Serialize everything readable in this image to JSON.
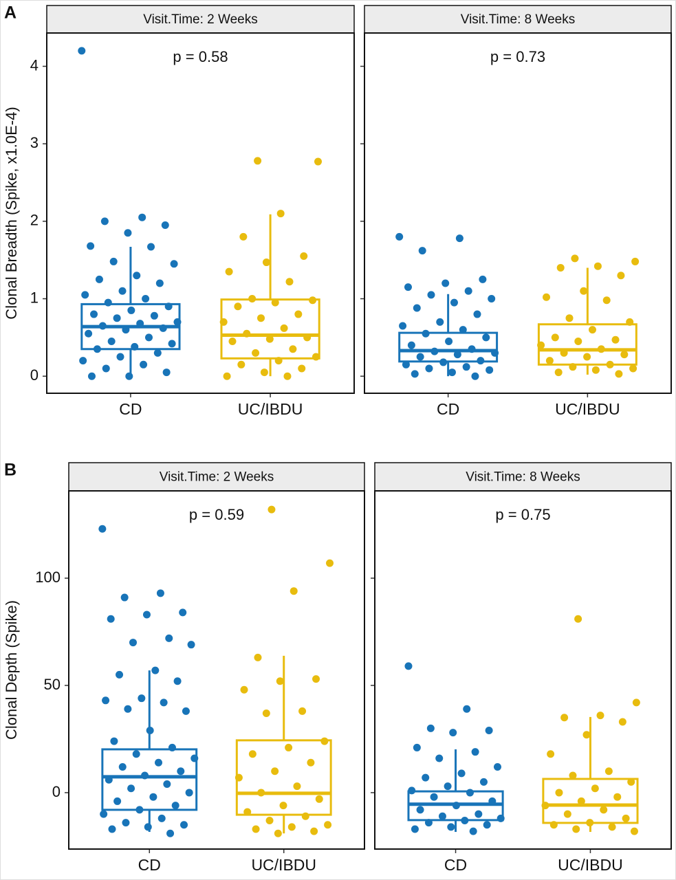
{
  "chart_data": [
    {
      "type": "box",
      "panel": "A",
      "title": "Visit.Time: 2 Weeks",
      "annotation": "p = 0.58",
      "y_label": "Clonal Breadth (Spike, x1.0E-4)",
      "categories": [
        "CD",
        "UC/IBDU"
      ],
      "ylim": [
        -0.22,
        4.43
      ],
      "yticks": [
        0,
        1,
        2,
        3,
        4
      ],
      "series": [
        {
          "color": "#1874b8",
          "stats": {
            "whislo": 0,
            "q1": 0.35,
            "med": 0.64,
            "q3": 0.93,
            "whishi": 1.67
          },
          "values": [
            4.2,
            2.05,
            2.0,
            1.95,
            1.85,
            1.68,
            1.67,
            1.48,
            1.45,
            1.3,
            1.25,
            1.2,
            1.1,
            1.05,
            1.0,
            0.95,
            0.9,
            0.85,
            0.8,
            0.78,
            0.75,
            0.7,
            0.68,
            0.65,
            0.62,
            0.6,
            0.55,
            0.5,
            0.45,
            0.42,
            0.38,
            0.35,
            0.3,
            0.25,
            0.2,
            0.15,
            0.1,
            0.05,
            0.0,
            0.0
          ]
        },
        {
          "color": "#e8bc0e",
          "stats": {
            "whislo": 0,
            "q1": 0.23,
            "med": 0.53,
            "q3": 0.99,
            "whishi": 2.09
          },
          "values": [
            2.78,
            2.77,
            2.1,
            1.8,
            1.55,
            1.47,
            1.35,
            1.22,
            1.0,
            0.98,
            0.95,
            0.9,
            0.8,
            0.75,
            0.7,
            0.62,
            0.55,
            0.5,
            0.48,
            0.45,
            0.35,
            0.3,
            0.25,
            0.2,
            0.15,
            0.1,
            0.05,
            0.0,
            0.0
          ]
        }
      ]
    },
    {
      "type": "box",
      "title": "Visit.Time: 8 Weeks",
      "annotation": "p = 0.73",
      "categories": [
        "CD",
        "UC/IBDU"
      ],
      "ylim": [
        -0.22,
        4.43
      ],
      "series": [
        {
          "color": "#1874b8",
          "stats": {
            "whislo": 0,
            "q1": 0.19,
            "med": 0.33,
            "q3": 0.56,
            "whishi": 1.06
          },
          "values": [
            1.8,
            1.78,
            1.62,
            1.25,
            1.2,
            1.15,
            1.1,
            1.05,
            1.0,
            0.95,
            0.88,
            0.8,
            0.7,
            0.65,
            0.6,
            0.55,
            0.5,
            0.45,
            0.4,
            0.35,
            0.32,
            0.3,
            0.28,
            0.25,
            0.2,
            0.18,
            0.15,
            0.12,
            0.1,
            0.08,
            0.05,
            0.03,
            0.0
          ]
        },
        {
          "color": "#e8bc0e",
          "stats": {
            "whislo": 0.02,
            "q1": 0.15,
            "med": 0.34,
            "q3": 0.67,
            "whishi": 1.4
          },
          "values": [
            1.52,
            1.48,
            1.42,
            1.4,
            1.3,
            1.1,
            1.02,
            0.98,
            0.75,
            0.7,
            0.6,
            0.5,
            0.47,
            0.45,
            0.4,
            0.35,
            0.3,
            0.28,
            0.25,
            0.2,
            0.15,
            0.12,
            0.1,
            0.08,
            0.05,
            0.03
          ]
        }
      ]
    },
    {
      "type": "box",
      "panel": "B",
      "title": "Visit.Time: 2 Weeks",
      "annotation": "p = 0.59",
      "y_label": "Clonal Depth (Spike)",
      "categories": [
        "CD",
        "UC/IBDU"
      ],
      "ylim": [
        -26.3,
        140.7
      ],
      "yticks": [
        0,
        50,
        100
      ],
      "series": [
        {
          "color": "#1874b8",
          "stats": {
            "whislo": -18.3,
            "q1": -8,
            "med": 7.4,
            "q3": 20.2,
            "whishi": 57
          },
          "values": [
            123,
            93,
            91,
            84,
            83,
            81,
            72,
            70,
            69,
            57,
            55,
            52,
            44,
            43,
            42,
            39,
            38,
            29,
            24,
            21,
            18,
            16,
            14,
            12,
            10,
            8,
            6,
            4,
            2,
            0,
            -2,
            -4,
            -6,
            -8,
            -10,
            -12,
            -14,
            -15,
            -16,
            -17,
            -19
          ]
        },
        {
          "color": "#e8bc0e",
          "stats": {
            "whislo": -19,
            "q1": -10.3,
            "med": -0.3,
            "q3": 24.4,
            "whishi": 63.8
          },
          "values": [
            132,
            107,
            94,
            63,
            53,
            52,
            48,
            38,
            37,
            24,
            21,
            18,
            14,
            10,
            7,
            3,
            0,
            -3,
            -6,
            -9,
            -11,
            -13,
            -15,
            -16,
            -17,
            -18,
            -19
          ]
        }
      ]
    },
    {
      "type": "box",
      "title": "Visit.Time: 8 Weeks",
      "annotation": "p = 0.75",
      "categories": [
        "CD",
        "UC/IBDU"
      ],
      "ylim": [
        -26.3,
        140.7
      ],
      "series": [
        {
          "color": "#1874b8",
          "stats": {
            "whislo": -18.3,
            "q1": -12.8,
            "med": -5.4,
            "q3": 0.6,
            "whishi": 20.2
          },
          "values": [
            59,
            39,
            30,
            29,
            28,
            21,
            19,
            16,
            12,
            9,
            7,
            5,
            3,
            1,
            0,
            -2,
            -4,
            -6,
            -8,
            -10,
            -11,
            -12,
            -13,
            -14,
            -15,
            -16,
            -17,
            -18
          ]
        },
        {
          "color": "#e8bc0e",
          "stats": {
            "whislo": -18.3,
            "q1": -14.1,
            "med": -5.8,
            "q3": 6.4,
            "whishi": 35.3
          },
          "values": [
            81,
            42,
            36,
            35,
            33,
            27,
            18,
            10,
            8,
            5,
            2,
            0,
            -2,
            -4,
            -6,
            -8,
            -10,
            -12,
            -14,
            -15,
            -16,
            -17,
            -18
          ]
        }
      ]
    }
  ]
}
